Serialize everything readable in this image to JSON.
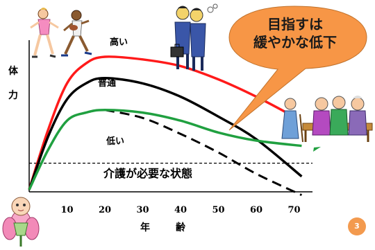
{
  "labels": {
    "y_axis_char1": "体",
    "y_axis_char2": "力",
    "x_axis_char1": "年",
    "x_axis_char2": "齢",
    "curve_high": "高い",
    "curve_normal": "普通",
    "curve_low": "低い",
    "care_line": "介護が必要な状態",
    "bubble_line1": "目指すは",
    "bubble_line2": "緩やかな低下",
    "page_number": "3"
  },
  "x_ticks": [
    "10",
    "20",
    "30",
    "40",
    "50",
    "60",
    "70"
  ],
  "colors": {
    "high": "#ff1a1a",
    "normal": "#000000",
    "low": "#20a040",
    "bubble": "#f79646",
    "page_badge": "#f39a4e"
  },
  "chart_data": {
    "type": "line",
    "x_ticks": [
      10,
      20,
      30,
      40,
      50,
      60,
      70
    ],
    "series": [
      {
        "name": "高い",
        "points": [
          [
            0,
            0
          ],
          [
            5,
            45
          ],
          [
            10,
            80
          ],
          [
            15,
            95
          ],
          [
            20,
            100
          ],
          [
            30,
            98
          ],
          [
            40,
            93
          ],
          [
            50,
            83
          ],
          [
            60,
            70
          ],
          [
            70,
            55
          ]
        ]
      },
      {
        "name": "普通",
        "points": [
          [
            0,
            0
          ],
          [
            5,
            40
          ],
          [
            10,
            68
          ],
          [
            15,
            80
          ],
          [
            20,
            84
          ],
          [
            30,
            80
          ],
          [
            40,
            70
          ],
          [
            50,
            55
          ],
          [
            60,
            38
          ],
          [
            72,
            10
          ]
        ]
      },
      {
        "name": "低い",
        "points": [
          [
            0,
            0
          ],
          [
            5,
            30
          ],
          [
            10,
            52
          ],
          [
            15,
            58
          ],
          [
            20,
            60
          ],
          [
            30,
            58
          ],
          [
            40,
            52
          ],
          [
            50,
            43
          ],
          [
            60,
            37
          ],
          [
            72,
            33
          ]
        ]
      }
    ],
    "declining_path": {
      "points": [
        [
          20,
          60
        ],
        [
          30,
          54
        ],
        [
          40,
          42
        ],
        [
          50,
          28
        ],
        [
          60,
          12
        ],
        [
          72,
          -4
        ]
      ]
    },
    "care_threshold": 20
  },
  "icons": [
    "runners-clipart",
    "businessmen-clipart",
    "elderly-group-clipart",
    "baby-in-flower-clipart"
  ]
}
